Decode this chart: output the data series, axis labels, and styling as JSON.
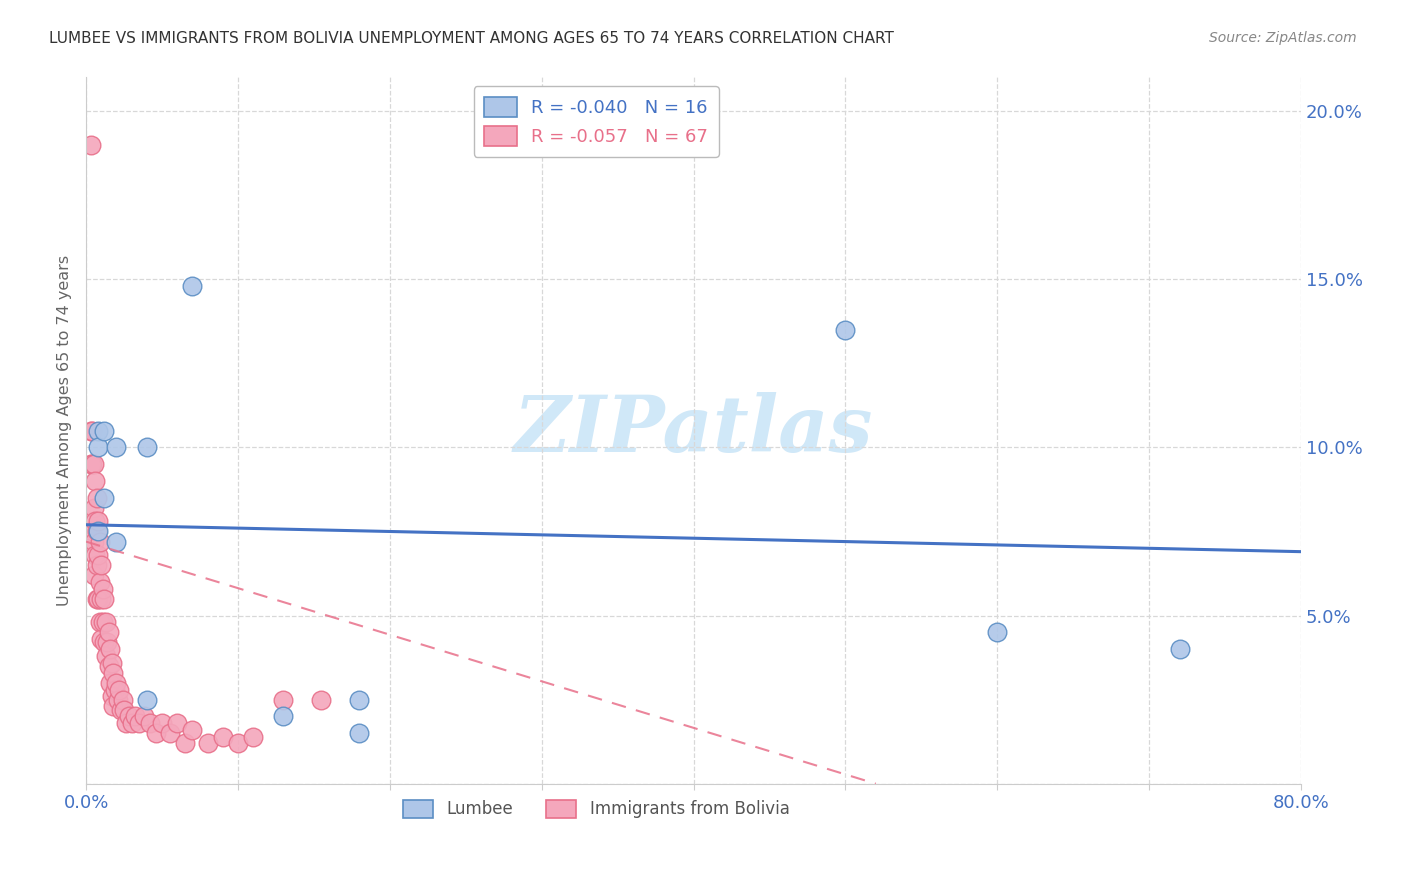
{
  "title": "LUMBEE VS IMMIGRANTS FROM BOLIVIA UNEMPLOYMENT AMONG AGES 65 TO 74 YEARS CORRELATION CHART",
  "source": "Source: ZipAtlas.com",
  "ylabel": "Unemployment Among Ages 65 to 74 years",
  "xmin": 0.0,
  "xmax": 0.8,
  "ymin": 0.0,
  "ymax": 0.21,
  "yticks": [
    0.0,
    0.05,
    0.1,
    0.15,
    0.2
  ],
  "ytick_labels": [
    "",
    "5.0%",
    "10.0%",
    "15.0%",
    "20.0%"
  ],
  "xticks": [
    0.0,
    0.1,
    0.2,
    0.3,
    0.4,
    0.5,
    0.6,
    0.7,
    0.8
  ],
  "xtick_labels": [
    "0.0%",
    "",
    "",
    "",
    "",
    "",
    "",
    "",
    "80.0%"
  ],
  "lumbee_color": "#aec6e8",
  "bolivia_color": "#f4a7bc",
  "lumbee_edge_color": "#5b8ec4",
  "bolivia_edge_color": "#e8708a",
  "lumbee_line_color": "#4472c4",
  "bolivia_line_color": "#e8708a",
  "legend_lumbee_R": "-0.040",
  "legend_lumbee_N": "16",
  "legend_bolivia_R": "-0.057",
  "legend_bolivia_N": "67",
  "lumbee_x": [
    0.008,
    0.008,
    0.008,
    0.012,
    0.012,
    0.02,
    0.02,
    0.04,
    0.04,
    0.07,
    0.13,
    0.18,
    0.18,
    0.5,
    0.6,
    0.72
  ],
  "lumbee_y": [
    0.105,
    0.1,
    0.075,
    0.105,
    0.085,
    0.1,
    0.072,
    0.1,
    0.025,
    0.148,
    0.02,
    0.025,
    0.015,
    0.135,
    0.045,
    0.04
  ],
  "bolivia_x": [
    0.003,
    0.003,
    0.003,
    0.004,
    0.004,
    0.004,
    0.005,
    0.005,
    0.005,
    0.005,
    0.006,
    0.006,
    0.006,
    0.007,
    0.007,
    0.007,
    0.007,
    0.008,
    0.008,
    0.008,
    0.009,
    0.009,
    0.009,
    0.01,
    0.01,
    0.01,
    0.011,
    0.011,
    0.012,
    0.012,
    0.013,
    0.013,
    0.014,
    0.015,
    0.015,
    0.016,
    0.016,
    0.017,
    0.017,
    0.018,
    0.018,
    0.019,
    0.02,
    0.021,
    0.022,
    0.023,
    0.024,
    0.025,
    0.026,
    0.028,
    0.03,
    0.032,
    0.035,
    0.038,
    0.042,
    0.046,
    0.05,
    0.055,
    0.06,
    0.065,
    0.07,
    0.08,
    0.09,
    0.1,
    0.11,
    0.13,
    0.155
  ],
  "bolivia_y": [
    0.19,
    0.105,
    0.095,
    0.105,
    0.095,
    0.075,
    0.095,
    0.082,
    0.072,
    0.062,
    0.09,
    0.078,
    0.068,
    0.085,
    0.075,
    0.065,
    0.055,
    0.078,
    0.068,
    0.055,
    0.072,
    0.06,
    0.048,
    0.065,
    0.055,
    0.043,
    0.058,
    0.048,
    0.055,
    0.042,
    0.048,
    0.038,
    0.042,
    0.045,
    0.035,
    0.04,
    0.03,
    0.036,
    0.026,
    0.033,
    0.023,
    0.028,
    0.03,
    0.025,
    0.028,
    0.022,
    0.025,
    0.022,
    0.018,
    0.02,
    0.018,
    0.02,
    0.018,
    0.02,
    0.018,
    0.015,
    0.018,
    0.015,
    0.018,
    0.012,
    0.016,
    0.012,
    0.014,
    0.012,
    0.014,
    0.025,
    0.025
  ],
  "lumbee_trend_x": [
    0.0,
    0.8
  ],
  "lumbee_trend_y": [
    0.077,
    0.069
  ],
  "bolivia_trend_x": [
    0.0,
    0.52
  ],
  "bolivia_trend_y": [
    0.072,
    0.0
  ],
  "watermark_text": "ZIPatlas",
  "watermark_color": "#d0e8f8",
  "background_color": "#ffffff",
  "grid_color": "#d8d8d8"
}
